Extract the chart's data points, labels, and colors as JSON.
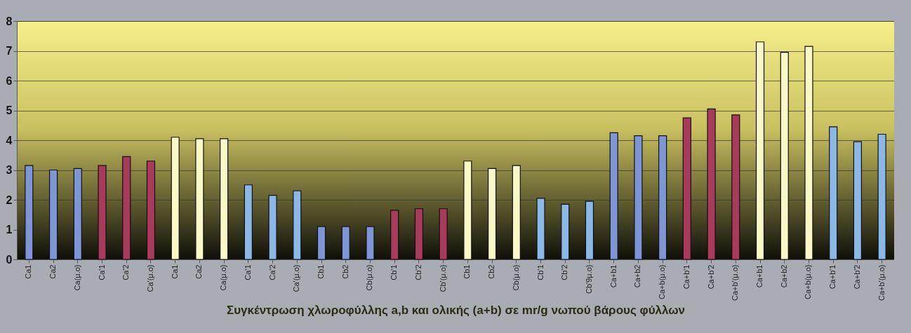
{
  "chart_data": {
    "type": "bar",
    "xlabel": "Συγκέντρωση χλωροφύλλης a,b και ολικής (a+b) σε mr/g νωπού βάρους φύλλων",
    "categories": [
      "Ca1",
      "Ca2",
      "Ca(μ.ο)",
      "Ca'1",
      "Ca'2",
      "Ca'(μ.ο)",
      "Ca1",
      "Ca2",
      "Ca(μ.ο)",
      "Ca'1",
      "Ca'2",
      "Ca'(μ.ο)",
      "Cb1",
      "Cb2",
      "Cb(μ.ο)",
      "Cb'1",
      "Cb'2",
      "Cb'(μ.ο)",
      "Cb1",
      "Cb2",
      "Cb(μ.ο)",
      "Cb'1",
      "Cb'2",
      "Cb'9μ.ο)",
      "Ca+b1",
      "Ca+b2",
      "Ca+b(μ.ο)",
      "Ca+b'1",
      "Ca+b'2",
      "Ca+b'(μ.ο)",
      "Ca+b1",
      "Ca+b2",
      "Ca+b(μ.ο)",
      "Ca+b'1",
      "Ca+b'2",
      "Ca+b'(μ.ο)"
    ],
    "values": [
      3.15,
      3.0,
      3.05,
      3.15,
      3.45,
      3.3,
      4.1,
      4.05,
      4.05,
      2.5,
      2.15,
      2.3,
      1.1,
      1.1,
      1.1,
      1.65,
      1.7,
      1.7,
      3.3,
      3.05,
      3.15,
      2.05,
      1.85,
      1.95,
      4.25,
      4.15,
      4.15,
      4.75,
      5.05,
      4.85,
      7.3,
      6.95,
      7.15,
      4.45,
      3.95,
      4.2
    ],
    "colors": [
      "#7f96d6",
      "#7f96d6",
      "#7f96d6",
      "#a83a5c",
      "#a83a5c",
      "#a83a5c",
      "#fbf8c8",
      "#fbf8c8",
      "#fbf8c8",
      "#8cb8e8",
      "#8cb8e8",
      "#8cb8e8",
      "#7f96d6",
      "#7f96d6",
      "#7f96d6",
      "#a83a5c",
      "#a83a5c",
      "#a83a5c",
      "#fbf8c8",
      "#fbf8c8",
      "#fbf8c8",
      "#8cb8e8",
      "#8cb8e8",
      "#8cb8e8",
      "#7f96d6",
      "#7f96d6",
      "#7f96d6",
      "#a83a5c",
      "#a83a5c",
      "#a83a5c",
      "#fbf8c8",
      "#fbf8c8",
      "#fbf8c8",
      "#8cb8e8",
      "#8cb8e8",
      "#8cb8e8"
    ],
    "ylim": [
      0,
      8
    ],
    "yticks": [
      0,
      1,
      2,
      3,
      4,
      5,
      6,
      7,
      8
    ],
    "grid": "y"
  }
}
